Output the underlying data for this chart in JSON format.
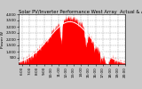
{
  "title": "Solar PV/Inverter Performance West Array  Actual & Average Power Output",
  "ylabel": "Power W",
  "ylim": [
    0,
    4000
  ],
  "yticks": [
    500,
    1000,
    1500,
    2000,
    2500,
    3000,
    3500,
    4000
  ],
  "ytick_labels": [
    "500",
    "1,000",
    "1,500",
    "2,000",
    "2,500",
    "3,000",
    "3,500",
    "4,000"
  ],
  "bg_color": "#c8c8c8",
  "plot_bg": "#ffffff",
  "fill_color": "#ff0000",
  "avg_line_color": "#ffffff",
  "grid_color": "#999999",
  "title_color": "#000000",
  "title_fontsize": 3.8,
  "tick_fontsize": 3.0,
  "label_fontsize": 3.2,
  "figsize": [
    1.6,
    1.0
  ],
  "dpi": 100,
  "xlim": [
    5.5,
    20.0
  ],
  "xtick_positions": [
    6,
    7,
    8,
    9,
    10,
    11,
    12,
    13,
    14,
    15,
    16,
    17,
    18,
    19,
    20
  ],
  "xtick_labels": [
    "6:00",
    "7:00",
    "8:00",
    "9:00",
    "10:00",
    "11:00",
    "12:00",
    "13:00",
    "14:00",
    "15:00",
    "16:00",
    "17:00",
    "18:00",
    "19:00",
    "20:00"
  ]
}
